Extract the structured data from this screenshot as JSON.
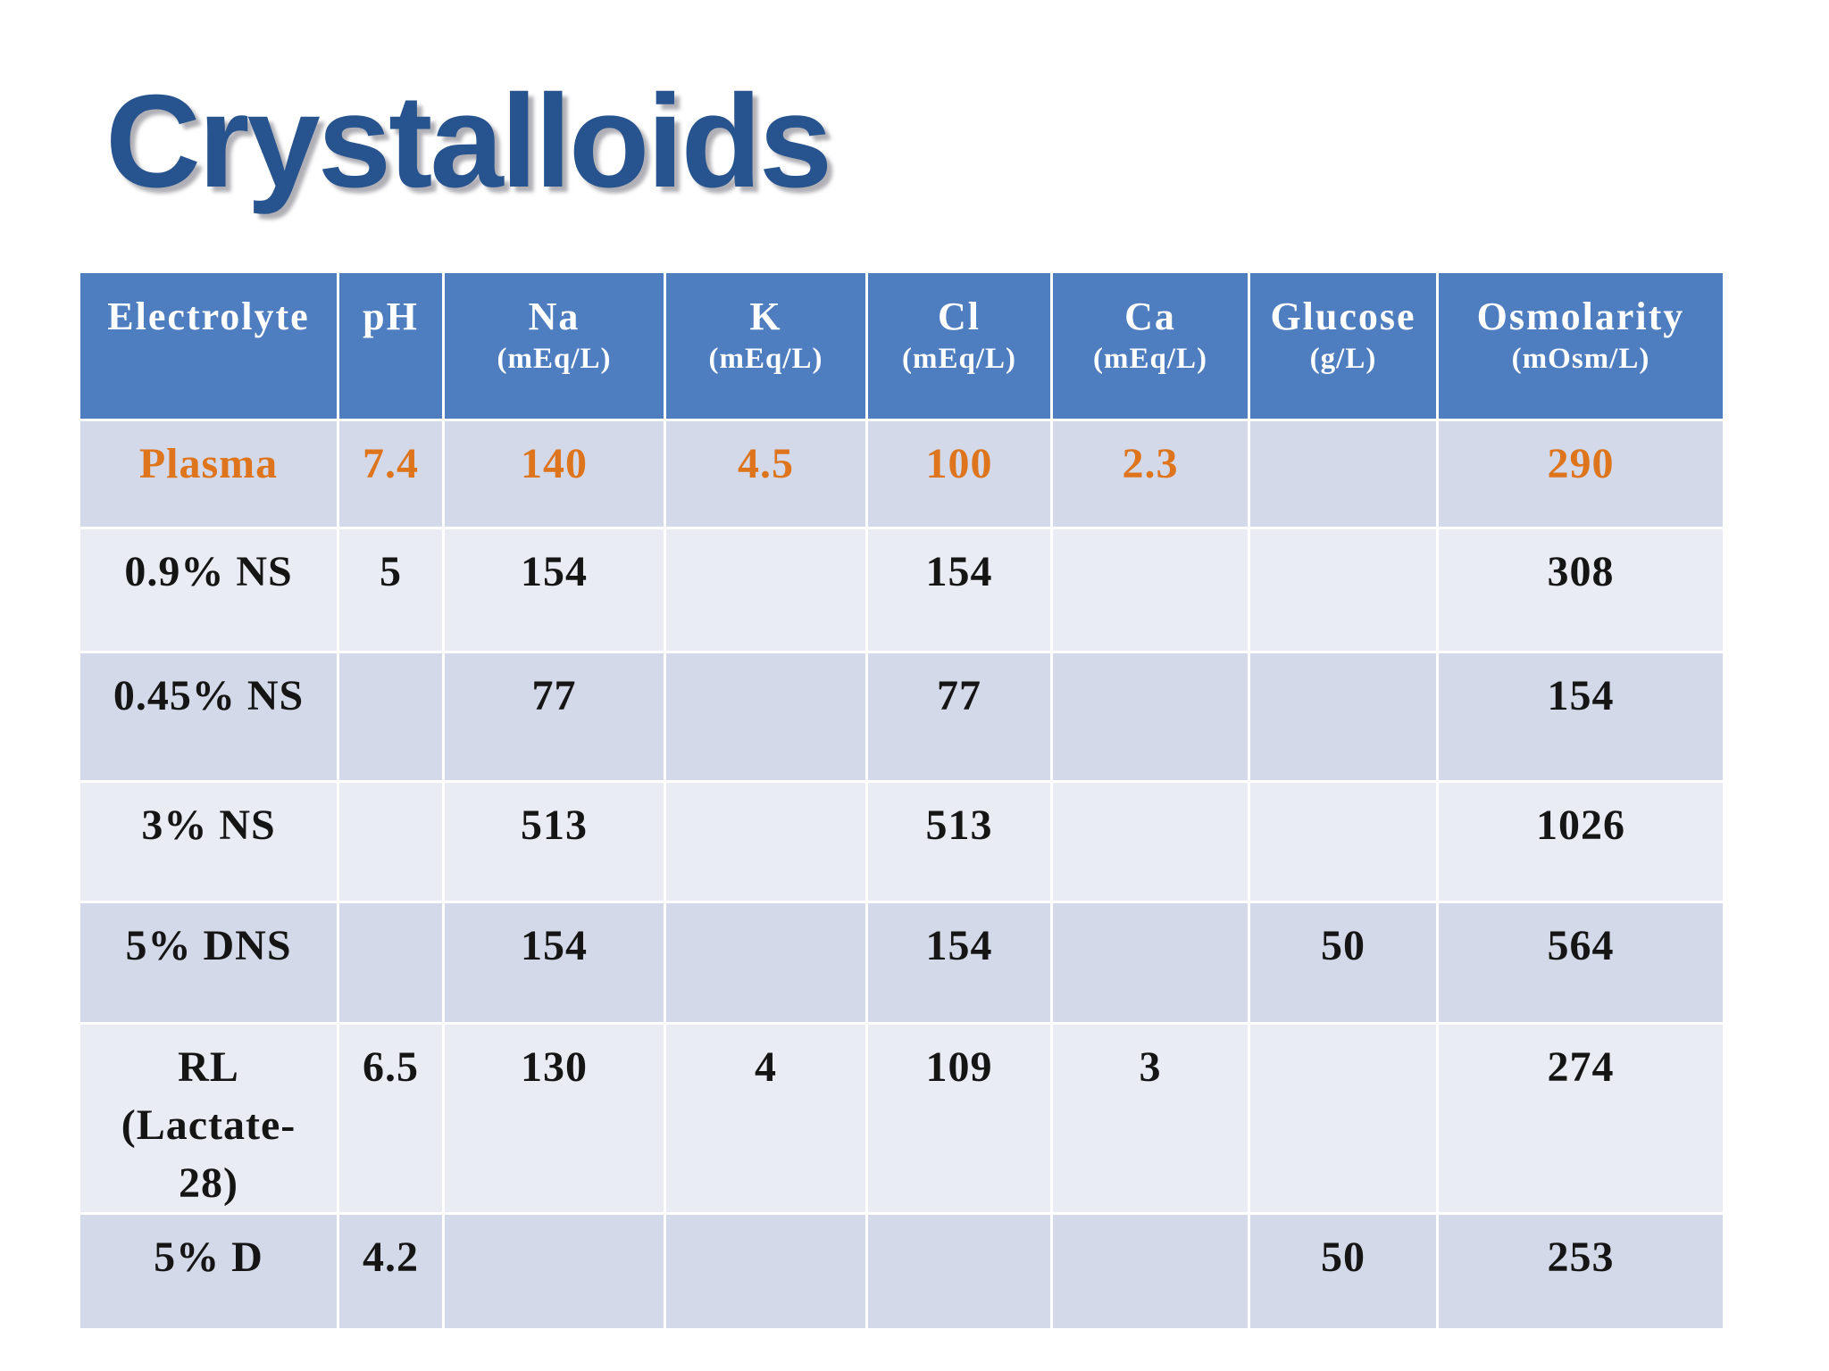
{
  "title": "Crystalloids",
  "colors": {
    "title_blue": "#27538e",
    "header_blue": "#4e7dc0",
    "row_dark": "#d3d9e8",
    "row_light": "#eaecf4",
    "highlight_orange": "#de751d",
    "body_text": "#151515",
    "grid_line": "#ffffff"
  },
  "table": {
    "columns": [
      {
        "label": "Electrolyte",
        "unit": ""
      },
      {
        "label": "pH",
        "unit": ""
      },
      {
        "label": "Na",
        "unit": "(mEq/L)"
      },
      {
        "label": "K",
        "unit": "(mEq/L)"
      },
      {
        "label": "Cl",
        "unit": "(mEq/L)"
      },
      {
        "label": "Ca",
        "unit": "(mEq/L)"
      },
      {
        "label": "Glucose",
        "unit": "(g/L)"
      },
      {
        "label": "Osmolarity",
        "unit": "(mOsm/L)"
      }
    ],
    "rows": [
      {
        "name": "Plasma",
        "highlight": true,
        "values": [
          "7.4",
          "140",
          "4.5",
          "100",
          "2.3",
          "",
          "290"
        ]
      },
      {
        "name": "0.9% NS",
        "highlight": false,
        "values": [
          "5",
          "154",
          "",
          "154",
          "",
          "",
          "308"
        ]
      },
      {
        "name": "0.45% NS",
        "highlight": false,
        "values": [
          "",
          "77",
          "",
          "77",
          "",
          "",
          "154"
        ]
      },
      {
        "name": "3% NS",
        "highlight": false,
        "values": [
          "",
          "513",
          "",
          "513",
          "",
          "",
          "1026"
        ]
      },
      {
        "name": "5% DNS",
        "highlight": false,
        "values": [
          "",
          "154",
          "",
          "154",
          "",
          "50",
          "564"
        ]
      },
      {
        "name": "RL\n(Lactate-\n28)",
        "highlight": false,
        "values": [
          "6.5",
          "130",
          "4",
          "109",
          "3",
          "",
          "274"
        ]
      },
      {
        "name": "5% D",
        "highlight": false,
        "values": [
          "4.2",
          "",
          "",
          "",
          "",
          "50",
          "253"
        ]
      }
    ]
  }
}
